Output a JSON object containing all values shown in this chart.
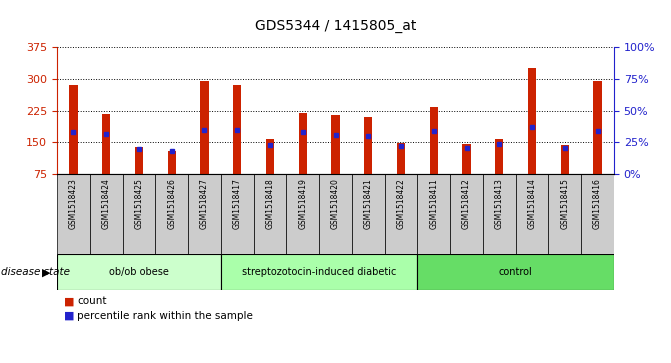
{
  "title": "GDS5344 / 1415805_at",
  "samples": [
    "GSM1518423",
    "GSM1518424",
    "GSM1518425",
    "GSM1518426",
    "GSM1518427",
    "GSM1518417",
    "GSM1518418",
    "GSM1518419",
    "GSM1518420",
    "GSM1518421",
    "GSM1518422",
    "GSM1518411",
    "GSM1518412",
    "GSM1518413",
    "GSM1518414",
    "GSM1518415",
    "GSM1518416"
  ],
  "counts": [
    285,
    218,
    140,
    130,
    295,
    286,
    158,
    220,
    215,
    210,
    148,
    234,
    146,
    158,
    325,
    144,
    295
  ],
  "percentiles": [
    33,
    32,
    20,
    18,
    35,
    35,
    23,
    33,
    31,
    30,
    22,
    34,
    21,
    24,
    37,
    21,
    34
  ],
  "groups": [
    {
      "label": "ob/ob obese",
      "start": 0,
      "end": 5
    },
    {
      "label": "streptozotocin-induced diabetic",
      "start": 5,
      "end": 11
    },
    {
      "label": "control",
      "start": 11,
      "end": 17
    }
  ],
  "group_colors": [
    "#ccffcc",
    "#aaffaa",
    "#66dd66"
  ],
  "bar_color": "#cc2200",
  "marker_color": "#2222cc",
  "y_min": 75,
  "y_max": 375,
  "y_ticks": [
    75,
    150,
    225,
    300,
    375
  ],
  "y2_ticks": [
    0,
    25,
    50,
    75,
    100
  ],
  "xtick_bg": "#cccccc",
  "plot_bg": "#ffffff",
  "left_axis_color": "#cc2200",
  "right_axis_color": "#2222cc",
  "bar_width": 0.25
}
